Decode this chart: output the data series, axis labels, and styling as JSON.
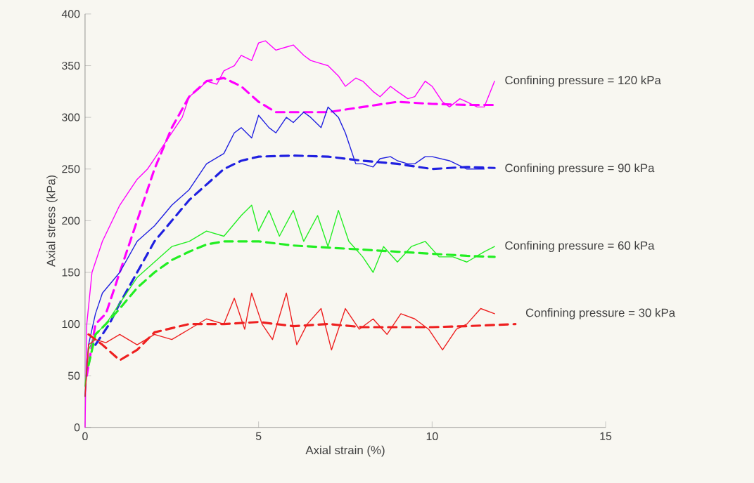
{
  "chart_data": {
    "type": "line",
    "xlabel": "Axial strain (%)",
    "ylabel": "Axial stress (kPa)",
    "xlim": [
      0,
      15
    ],
    "xticks": [
      0,
      5,
      10,
      15
    ],
    "ylim": [
      0,
      400
    ],
    "yticks": [
      0,
      50,
      100,
      150,
      200,
      250,
      300,
      350,
      400
    ],
    "grid": false,
    "marker": "none",
    "series": [
      {
        "name": "Confining pressure = 120 kPa",
        "color": "#ff00ff",
        "line_style": "solid",
        "x": [
          0,
          0.05,
          0.2,
          0.5,
          1,
          1.3,
          1.5,
          1.8,
          2,
          2.3,
          2.5,
          2.8,
          3,
          3.3,
          3.5,
          3.8,
          4,
          4.3,
          4.5,
          4.8,
          5,
          5.2,
          5.5,
          5.8,
          6,
          6.3,
          6.5,
          6.8,
          7,
          7.3,
          7.5,
          7.8,
          8,
          8.3,
          8.5,
          8.8,
          9,
          9.3,
          9.5,
          9.8,
          10,
          10.3,
          10.5,
          10.8,
          11,
          11.3,
          11.5,
          11.8
        ],
        "values": [
          0,
          100,
          150,
          180,
          215,
          230,
          240,
          250,
          260,
          275,
          285,
          300,
          320,
          328,
          335,
          332,
          345,
          350,
          360,
          355,
          372,
          374,
          365,
          368,
          370,
          360,
          355,
          352,
          350,
          340,
          330,
          338,
          335,
          325,
          320,
          330,
          325,
          318,
          320,
          335,
          330,
          315,
          310,
          318,
          315,
          310,
          310,
          335
        ]
      },
      {
        "color": "#ff00ff",
        "line_style": "dashed",
        "x": [
          0.05,
          0.3,
          0.6,
          1,
          1.5,
          2,
          2.5,
          3,
          3.5,
          4,
          4.5,
          5,
          5.5,
          6,
          7,
          8,
          9,
          10,
          11,
          11.8
        ],
        "values": [
          50,
          100,
          110,
          150,
          200,
          250,
          290,
          320,
          335,
          338,
          330,
          315,
          305,
          305,
          305,
          310,
          315,
          313,
          312,
          312
        ]
      },
      {
        "name": "Confining pressure = 90 kPa",
        "color": "#2020e0",
        "line_style": "solid",
        "x": [
          0,
          0.1,
          0.3,
          0.5,
          1,
          1.5,
          2,
          2.5,
          3,
          3.5,
          4,
          4.3,
          4.5,
          4.8,
          5,
          5.3,
          5.5,
          5.8,
          6,
          6.3,
          6.5,
          6.8,
          7,
          7.3,
          7.5,
          7.8,
          8,
          8.3,
          8.5,
          8.8,
          9,
          9.3,
          9.5,
          9.8,
          10,
          10.5,
          11,
          11.5
        ],
        "values": [
          30,
          80,
          110,
          130,
          150,
          180,
          195,
          215,
          230,
          255,
          265,
          285,
          290,
          280,
          302,
          290,
          285,
          300,
          295,
          305,
          300,
          290,
          310,
          300,
          285,
          255,
          255,
          252,
          260,
          262,
          258,
          255,
          255,
          262,
          262,
          258,
          250,
          250
        ]
      },
      {
        "color": "#2020e0",
        "line_style": "dashed",
        "x": [
          0.3,
          0.7,
          1,
          1.5,
          2,
          2.5,
          3,
          3.5,
          4,
          4.5,
          5,
          6,
          7,
          8,
          9,
          10,
          11,
          11.8
        ],
        "values": [
          80,
          100,
          120,
          150,
          180,
          200,
          220,
          235,
          250,
          258,
          262,
          263,
          262,
          258,
          255,
          250,
          252,
          251
        ]
      },
      {
        "name": "Confining pressure = 60 kPa",
        "color": "#22ee22",
        "line_style": "solid",
        "x": [
          0,
          0.1,
          0.3,
          0.6,
          1,
          1.5,
          2,
          2.5,
          3,
          3.5,
          4,
          4.5,
          4.8,
          5,
          5.3,
          5.6,
          6,
          6.3,
          6.7,
          7,
          7.3,
          7.6,
          8,
          8.3,
          8.6,
          9,
          9.4,
          9.8,
          10.2,
          10.6,
          11,
          11.5,
          11.8
        ],
        "values": [
          40,
          75,
          90,
          100,
          120,
          145,
          160,
          175,
          180,
          190,
          185,
          205,
          215,
          190,
          210,
          185,
          210,
          180,
          205,
          175,
          210,
          180,
          165,
          150,
          175,
          160,
          175,
          180,
          165,
          165,
          160,
          170,
          175
        ]
      },
      {
        "color": "#22ee22",
        "line_style": "dashed",
        "x": [
          0.1,
          0.3,
          0.6,
          1,
          1.5,
          2,
          2.5,
          3,
          3.5,
          4,
          5,
          6,
          7,
          8,
          9,
          10,
          11,
          11.8
        ],
        "values": [
          60,
          90,
          100,
          115,
          135,
          150,
          162,
          170,
          177,
          180,
          180,
          176,
          174,
          172,
          170,
          168,
          166,
          165
        ]
      },
      {
        "name": "Confining pressure = 30 kPa",
        "color": "#ee2020",
        "line_style": "solid",
        "x": [
          0,
          0.1,
          0.3,
          0.6,
          1,
          1.5,
          2,
          2.5,
          3,
          3.5,
          4,
          4.3,
          4.6,
          4.8,
          5.1,
          5.4,
          5.8,
          6.1,
          6.4,
          6.8,
          7.1,
          7.5,
          7.9,
          8.3,
          8.7,
          9.1,
          9.5,
          9.9,
          10.3,
          10.7,
          11,
          11.4,
          11.8
        ],
        "values": [
          30,
          80,
          85,
          82,
          90,
          80,
          90,
          85,
          95,
          105,
          100,
          125,
          95,
          130,
          100,
          85,
          130,
          80,
          100,
          115,
          75,
          115,
          95,
          105,
          90,
          110,
          105,
          95,
          75,
          95,
          100,
          115,
          110
        ]
      },
      {
        "color": "#ee2020",
        "line_style": "dashed",
        "x": [
          0.1,
          0.5,
          1,
          1.5,
          2,
          3,
          4,
          5,
          6,
          7,
          8,
          9,
          10,
          11,
          12.4
        ],
        "values": [
          90,
          80,
          65,
          75,
          92,
          100,
          100,
          102,
          98,
          100,
          97,
          97,
          97,
          98,
          100
        ]
      }
    ]
  }
}
